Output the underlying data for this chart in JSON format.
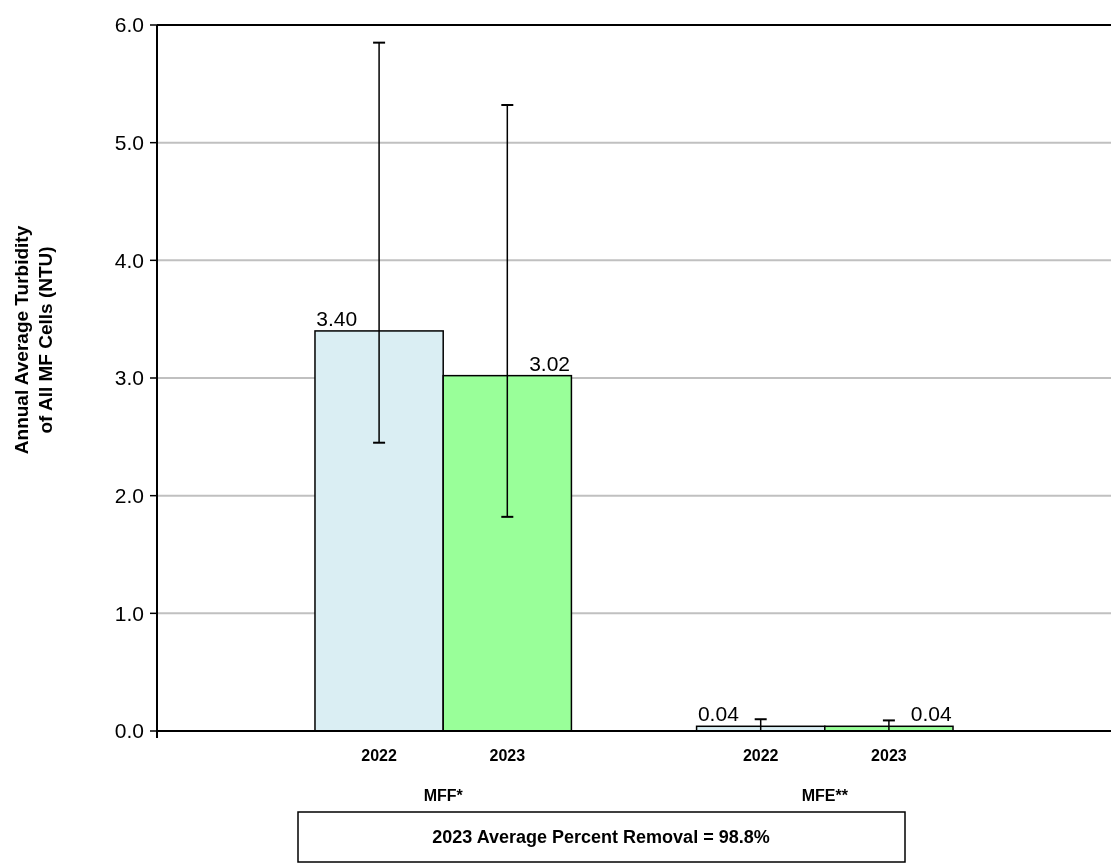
{
  "chart_data": {
    "type": "bar",
    "categories": [
      "MFF*",
      "MFE**"
    ],
    "series": [
      {
        "name": "2022",
        "color": "#daeef3",
        "values": [
          3.4,
          0.04
        ],
        "errors": [
          [
            2.45,
            5.85
          ],
          [
            0,
            0.1
          ]
        ],
        "value_labels": [
          "3.40",
          "0.04"
        ]
      },
      {
        "name": "2023",
        "color": "#99ff99",
        "values": [
          3.02,
          0.04
        ],
        "errors": [
          [
            1.82,
            5.32
          ],
          [
            0,
            0.09
          ]
        ],
        "value_labels": [
          "3.02",
          "0.04"
        ]
      }
    ],
    "ylabel": "Annual Average Turbidity\nof All MF Cells (NTU)",
    "ylim": [
      0,
      6
    ],
    "yticks": [
      {
        "value": 0,
        "label": "0.0"
      },
      {
        "value": 1,
        "label": "1.0"
      },
      {
        "value": 2,
        "label": "2.0"
      },
      {
        "value": 3,
        "label": "3.0"
      },
      {
        "value": 4,
        "label": "4.0"
      },
      {
        "value": 5,
        "label": "5.0"
      },
      {
        "value": 6,
        "label": "6.0"
      }
    ],
    "grid": "y",
    "annotations": [
      "2023 Average Percent Removal = 98.8%"
    ]
  }
}
